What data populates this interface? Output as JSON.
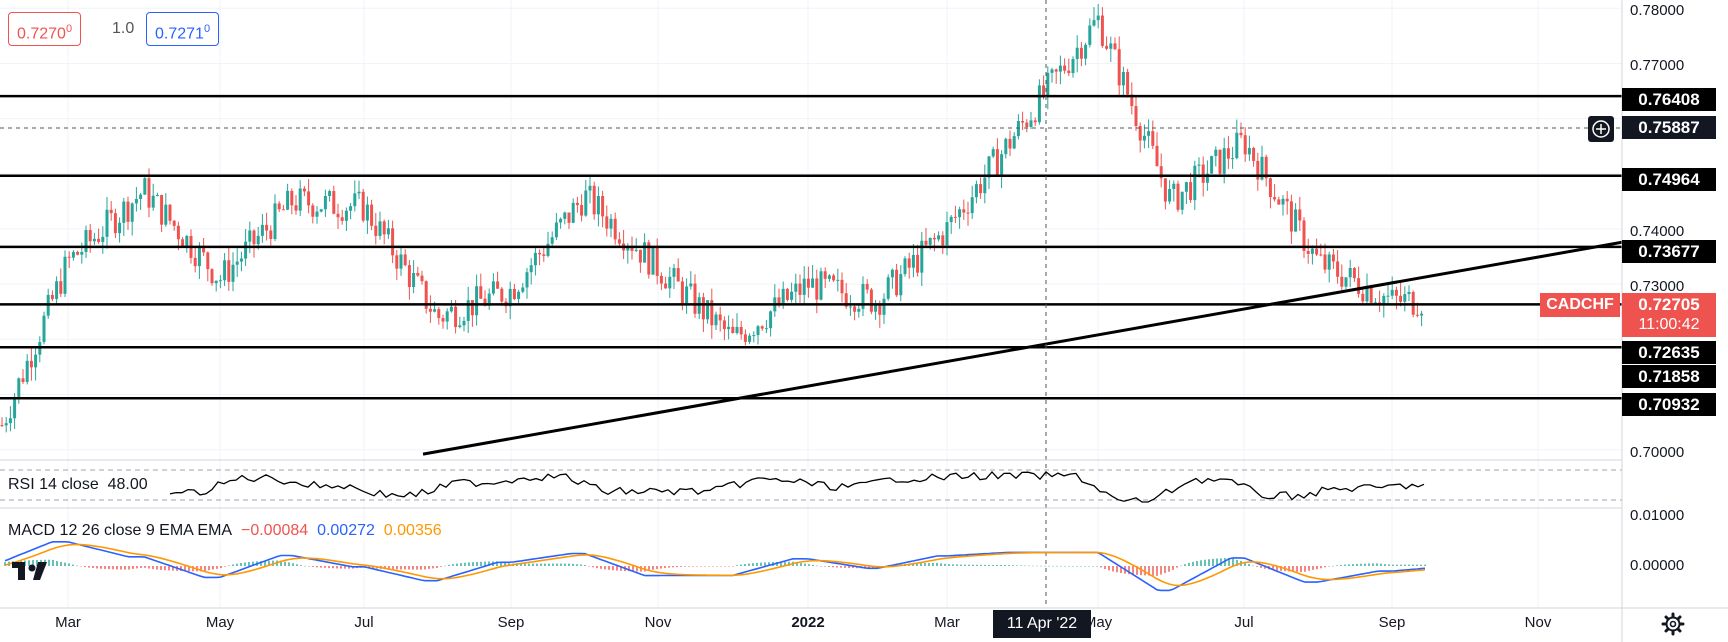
{
  "symbol": {
    "name": "CADCHF",
    "last_price": "0.72705",
    "countdown": "11:00:42",
    "bid": "0.7270",
    "bid_sup": "0",
    "spread": "1.0",
    "ask": "0.7271",
    "ask_sup": "0"
  },
  "crosshair": {
    "price": "0.75887",
    "date": "11 Apr '22"
  },
  "indicators": {
    "rsi": {
      "label": "RSI 14 close",
      "value": "48.00"
    },
    "macd": {
      "label": "MACD 12 26 close 9 EMA EMA",
      "histogram": "−0.00084",
      "macd": "0.00272",
      "signal": "0.00356",
      "ticks": [
        "0.01000",
        "0.00000"
      ]
    }
  },
  "levels": [
    "0.76408",
    "0.74964",
    "0.73677",
    "0.72635",
    "0.71858",
    "0.70932"
  ],
  "colors": {
    "up": "#26a69a",
    "down": "#ef5350",
    "macd_line": "#2962ff",
    "signal_line": "#ff9800",
    "level_line": "#000000"
  },
  "chart_data": {
    "type": "candlestick",
    "symbol": "CADCHF",
    "price_ticks": [
      "0.78000",
      "0.77000",
      "0.74000",
      "0.73000",
      "0.70000"
    ],
    "time_ticks": [
      "Mar",
      "May",
      "Jul",
      "Sep",
      "Nov",
      "2022",
      "Mar",
      "May",
      "Jul",
      "Sep",
      "Nov"
    ],
    "ylim": [
      0.6985,
      0.7815
    ],
    "horizontal_levels": [
      0.76408,
      0.74964,
      0.73677,
      0.72635,
      0.71858,
      0.70932
    ],
    "trendline": {
      "from": {
        "date": "2021-07",
        "price": 0.6992
      },
      "to": {
        "date": "2022-11",
        "price": 0.7376
      }
    },
    "price_path": [
      {
        "date": "2021-02",
        "price": 0.7
      },
      {
        "date": "2021-03",
        "price": 0.734
      },
      {
        "date": "2021-04",
        "price": 0.747
      },
      {
        "date": "2021-05",
        "price": 0.731
      },
      {
        "date": "2021-06",
        "price": 0.745
      },
      {
        "date": "2021-07",
        "price": 0.744
      },
      {
        "date": "2021-08",
        "price": 0.724
      },
      {
        "date": "2021-09",
        "price": 0.729
      },
      {
        "date": "2021-10",
        "price": 0.746
      },
      {
        "date": "2021-11",
        "price": 0.733
      },
      {
        "date": "2021-12",
        "price": 0.72
      },
      {
        "date": "2022-01",
        "price": 0.73
      },
      {
        "date": "2022-02",
        "price": 0.727
      },
      {
        "date": "2022-03",
        "price": 0.74
      },
      {
        "date": "2022-04",
        "price": 0.759
      },
      {
        "date": "2022-05",
        "price": 0.778
      },
      {
        "date": "2022-06",
        "price": 0.745
      },
      {
        "date": "2022-07",
        "price": 0.756
      },
      {
        "date": "2022-08",
        "price": 0.734
      },
      {
        "date": "2022-09",
        "price": 0.727
      }
    ]
  }
}
